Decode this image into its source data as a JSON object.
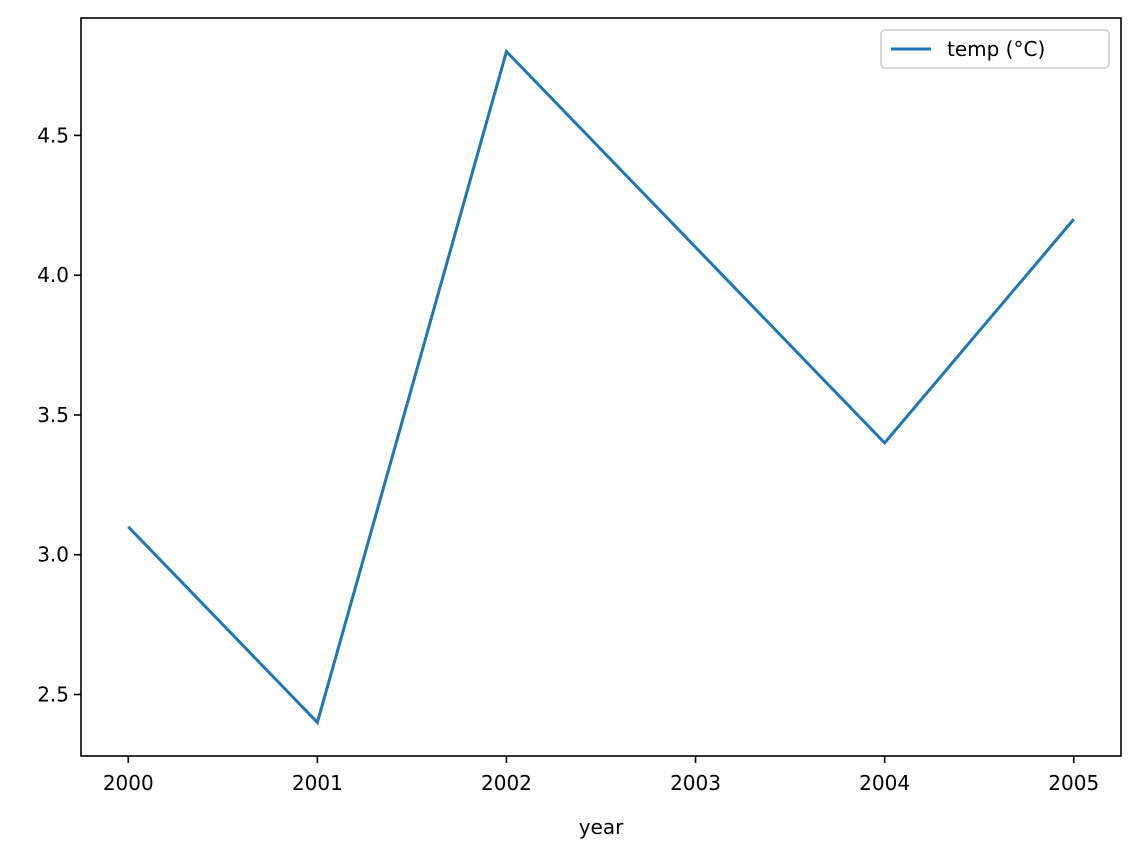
{
  "chart_data": {
    "type": "line",
    "x_label": "year",
    "x": [
      2000,
      2001,
      2002,
      2003,
      2004,
      2005
    ],
    "series": [
      {
        "name": "temp (°C)",
        "color": "#1f77b4",
        "values": [
          3.1,
          2.4,
          4.8,
          4.1,
          3.4,
          4.2
        ]
      }
    ],
    "xlim": [
      1999.75,
      2005.25
    ],
    "xticks": [
      2000,
      2001,
      2002,
      2003,
      2004,
      2005
    ],
    "ylim": [
      2.28,
      4.92
    ],
    "yticks": [
      {
        "value": 2.5,
        "label": "2.5"
      },
      {
        "value": 3.0,
        "label": "3.0"
      },
      {
        "value": 3.5,
        "label": "3.5"
      },
      {
        "value": 4.0,
        "label": "4.0"
      },
      {
        "value": 4.5,
        "label": "4.5"
      }
    ],
    "legend": "upper right",
    "grid": false
  }
}
